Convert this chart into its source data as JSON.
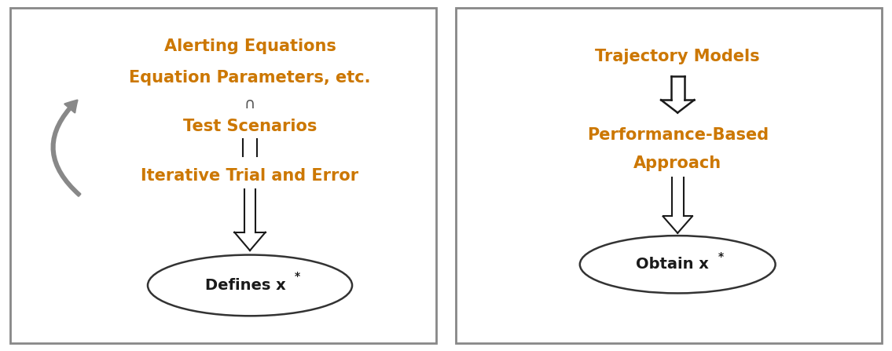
{
  "orange_color": "#CC7700",
  "black_color": "#1a1a1a",
  "bg_color": "#FFFFFF",
  "border_color": "#555555",
  "figsize": [
    11.35,
    4.47
  ],
  "dpi": 100,
  "left_panel": {
    "title_line1": "Alerting Equations",
    "title_line2": "Equation Parameters, etc.",
    "item2": "Test Scenarios",
    "item3": "Iterative Trial and Error",
    "ellipse_label": "Defines x",
    "ellipse_star": "*"
  },
  "right_panel": {
    "title": "Trajectory Models",
    "item2_line1": "Performance-Based",
    "item2_line2": "Approach",
    "ellipse_label": "Obtain x",
    "ellipse_star": "*"
  }
}
